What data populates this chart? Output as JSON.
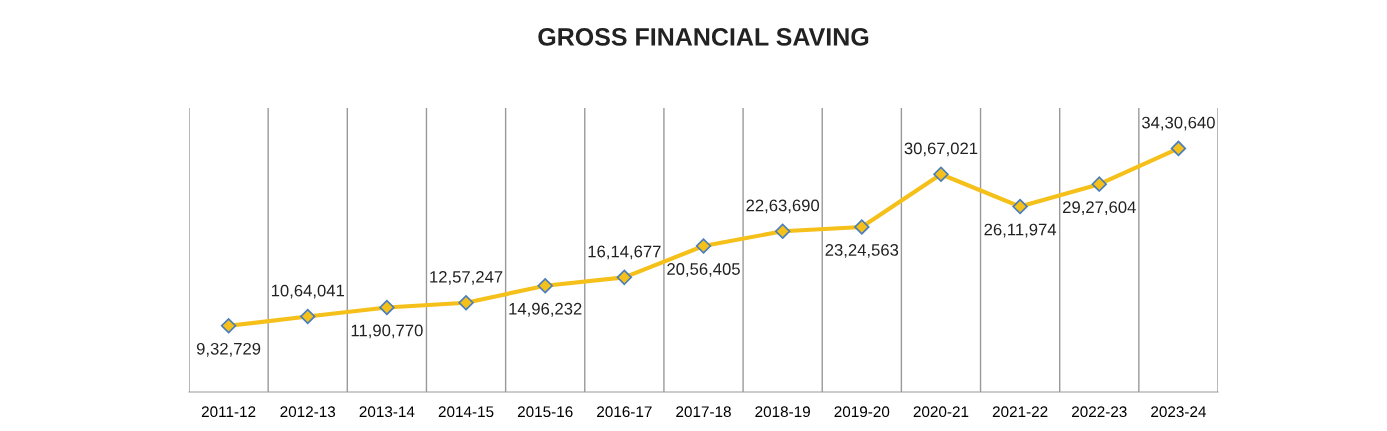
{
  "chart_data": {
    "type": "line",
    "title": "GROSS FINANCIAL SAVING",
    "categories": [
      "2011-12",
      "2012-13",
      "2013-14",
      "2014-15",
      "2015-16",
      "2016-17",
      "2017-18",
      "2018-19",
      "2019-20",
      "2020-21",
      "2021-22",
      "2022-23",
      "2023-24"
    ],
    "series": [
      {
        "color": "#f5c01a",
        "values": [
          932729,
          1064041,
          1190770,
          1257247,
          1496232,
          1614677,
          2056405,
          2263690,
          2324563,
          3067021,
          2611974,
          2927604,
          3430640
        ],
        "value_labels": [
          "9,32,729",
          "10,64,041",
          "11,90,770",
          "12,57,247",
          "14,96,232",
          "16,14,677",
          "20,56,405",
          "22,63,690",
          "23,24,563",
          "30,67,021",
          "26,11,974",
          "29,27,604",
          "34,30,640"
        ]
      }
    ],
    "ylim": [
      0,
      4000000
    ],
    "tick_labels": "x",
    "grid": "x",
    "marker": "diamond",
    "line_style": "solid",
    "legend": false
  }
}
